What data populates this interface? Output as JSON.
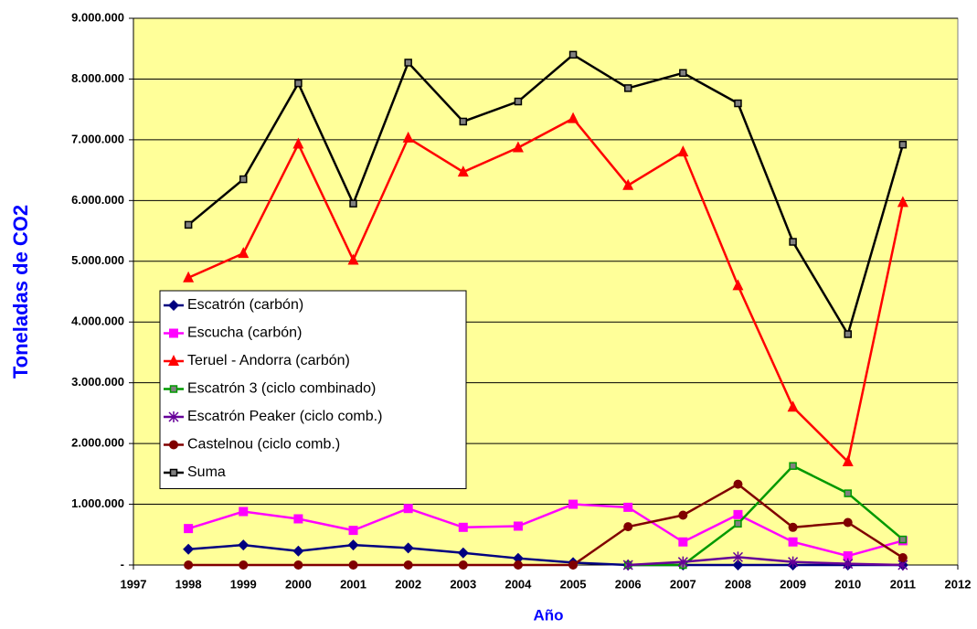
{
  "chart_data": {
    "type": "line",
    "x_label": "Año",
    "y_label": "Toneladas de CO2",
    "x": [
      1998,
      1999,
      2000,
      2001,
      2002,
      2003,
      2004,
      2005,
      2006,
      2007,
      2008,
      2009,
      2010,
      2011
    ],
    "xlim": [
      1997,
      2012
    ],
    "xticks": [
      1997,
      1998,
      1999,
      2000,
      2001,
      2002,
      2003,
      2004,
      2005,
      2006,
      2007,
      2008,
      2009,
      2010,
      2011,
      2012
    ],
    "ylim": [
      0,
      9000000
    ],
    "yticks": [
      {
        "value": 0,
        "label": "-"
      },
      {
        "value": 1000000,
        "label": "1.000.000"
      },
      {
        "value": 2000000,
        "label": "2.000.000"
      },
      {
        "value": 3000000,
        "label": "3.000.000"
      },
      {
        "value": 4000000,
        "label": "4.000.000"
      },
      {
        "value": 5000000,
        "label": "5.000.000"
      },
      {
        "value": 6000000,
        "label": "6.000.000"
      },
      {
        "value": 7000000,
        "label": "7.000.000"
      },
      {
        "value": 8000000,
        "label": "8.000.000"
      },
      {
        "value": 9000000,
        "label": "9.000.000"
      }
    ],
    "grid": true,
    "legend": "left",
    "series": [
      {
        "name": "Escatrón (carbón)",
        "color": "#000080",
        "marker": "diamond",
        "values": [
          260000,
          330000,
          230000,
          330000,
          280000,
          200000,
          110000,
          40000,
          0,
          0,
          0,
          0,
          0,
          0
        ]
      },
      {
        "name": "Escucha (carbón)",
        "color": "#ff00ff",
        "marker": "square",
        "values": [
          600000,
          880000,
          760000,
          570000,
          930000,
          620000,
          640000,
          1000000,
          950000,
          380000,
          830000,
          380000,
          150000,
          400000
        ]
      },
      {
        "name": "Teruel - Andorra (carbón)",
        "color": "#ff0000",
        "marker": "triangle",
        "values": [
          4730000,
          5130000,
          6930000,
          5020000,
          7030000,
          6470000,
          6870000,
          7350000,
          6250000,
          6800000,
          4600000,
          2600000,
          1700000,
          5970000
        ]
      },
      {
        "name": "Escatrón 3 (ciclo combinado)",
        "color": "#009900",
        "marker": "square-small",
        "values": [
          null,
          null,
          null,
          null,
          null,
          null,
          null,
          null,
          0,
          0,
          680000,
          1630000,
          1180000,
          420000
        ]
      },
      {
        "name": "Escatrón Peaker (ciclo comb.)",
        "color": "#660099",
        "marker": "star",
        "values": [
          null,
          null,
          null,
          null,
          null,
          null,
          null,
          null,
          0,
          50000,
          130000,
          50000,
          20000,
          0
        ]
      },
      {
        "name": "Castelnou (ciclo comb.)",
        "color": "#800000",
        "marker": "circle",
        "values": [
          0,
          0,
          0,
          0,
          0,
          0,
          0,
          0,
          630000,
          820000,
          1330000,
          620000,
          700000,
          120000
        ]
      },
      {
        "name": "Suma",
        "color": "#000000",
        "marker": "square-small",
        "values": [
          5600000,
          6350000,
          7930000,
          5950000,
          8270000,
          7300000,
          7630000,
          8400000,
          7850000,
          8100000,
          7600000,
          5320000,
          3800000,
          6920000
        ]
      }
    ]
  }
}
